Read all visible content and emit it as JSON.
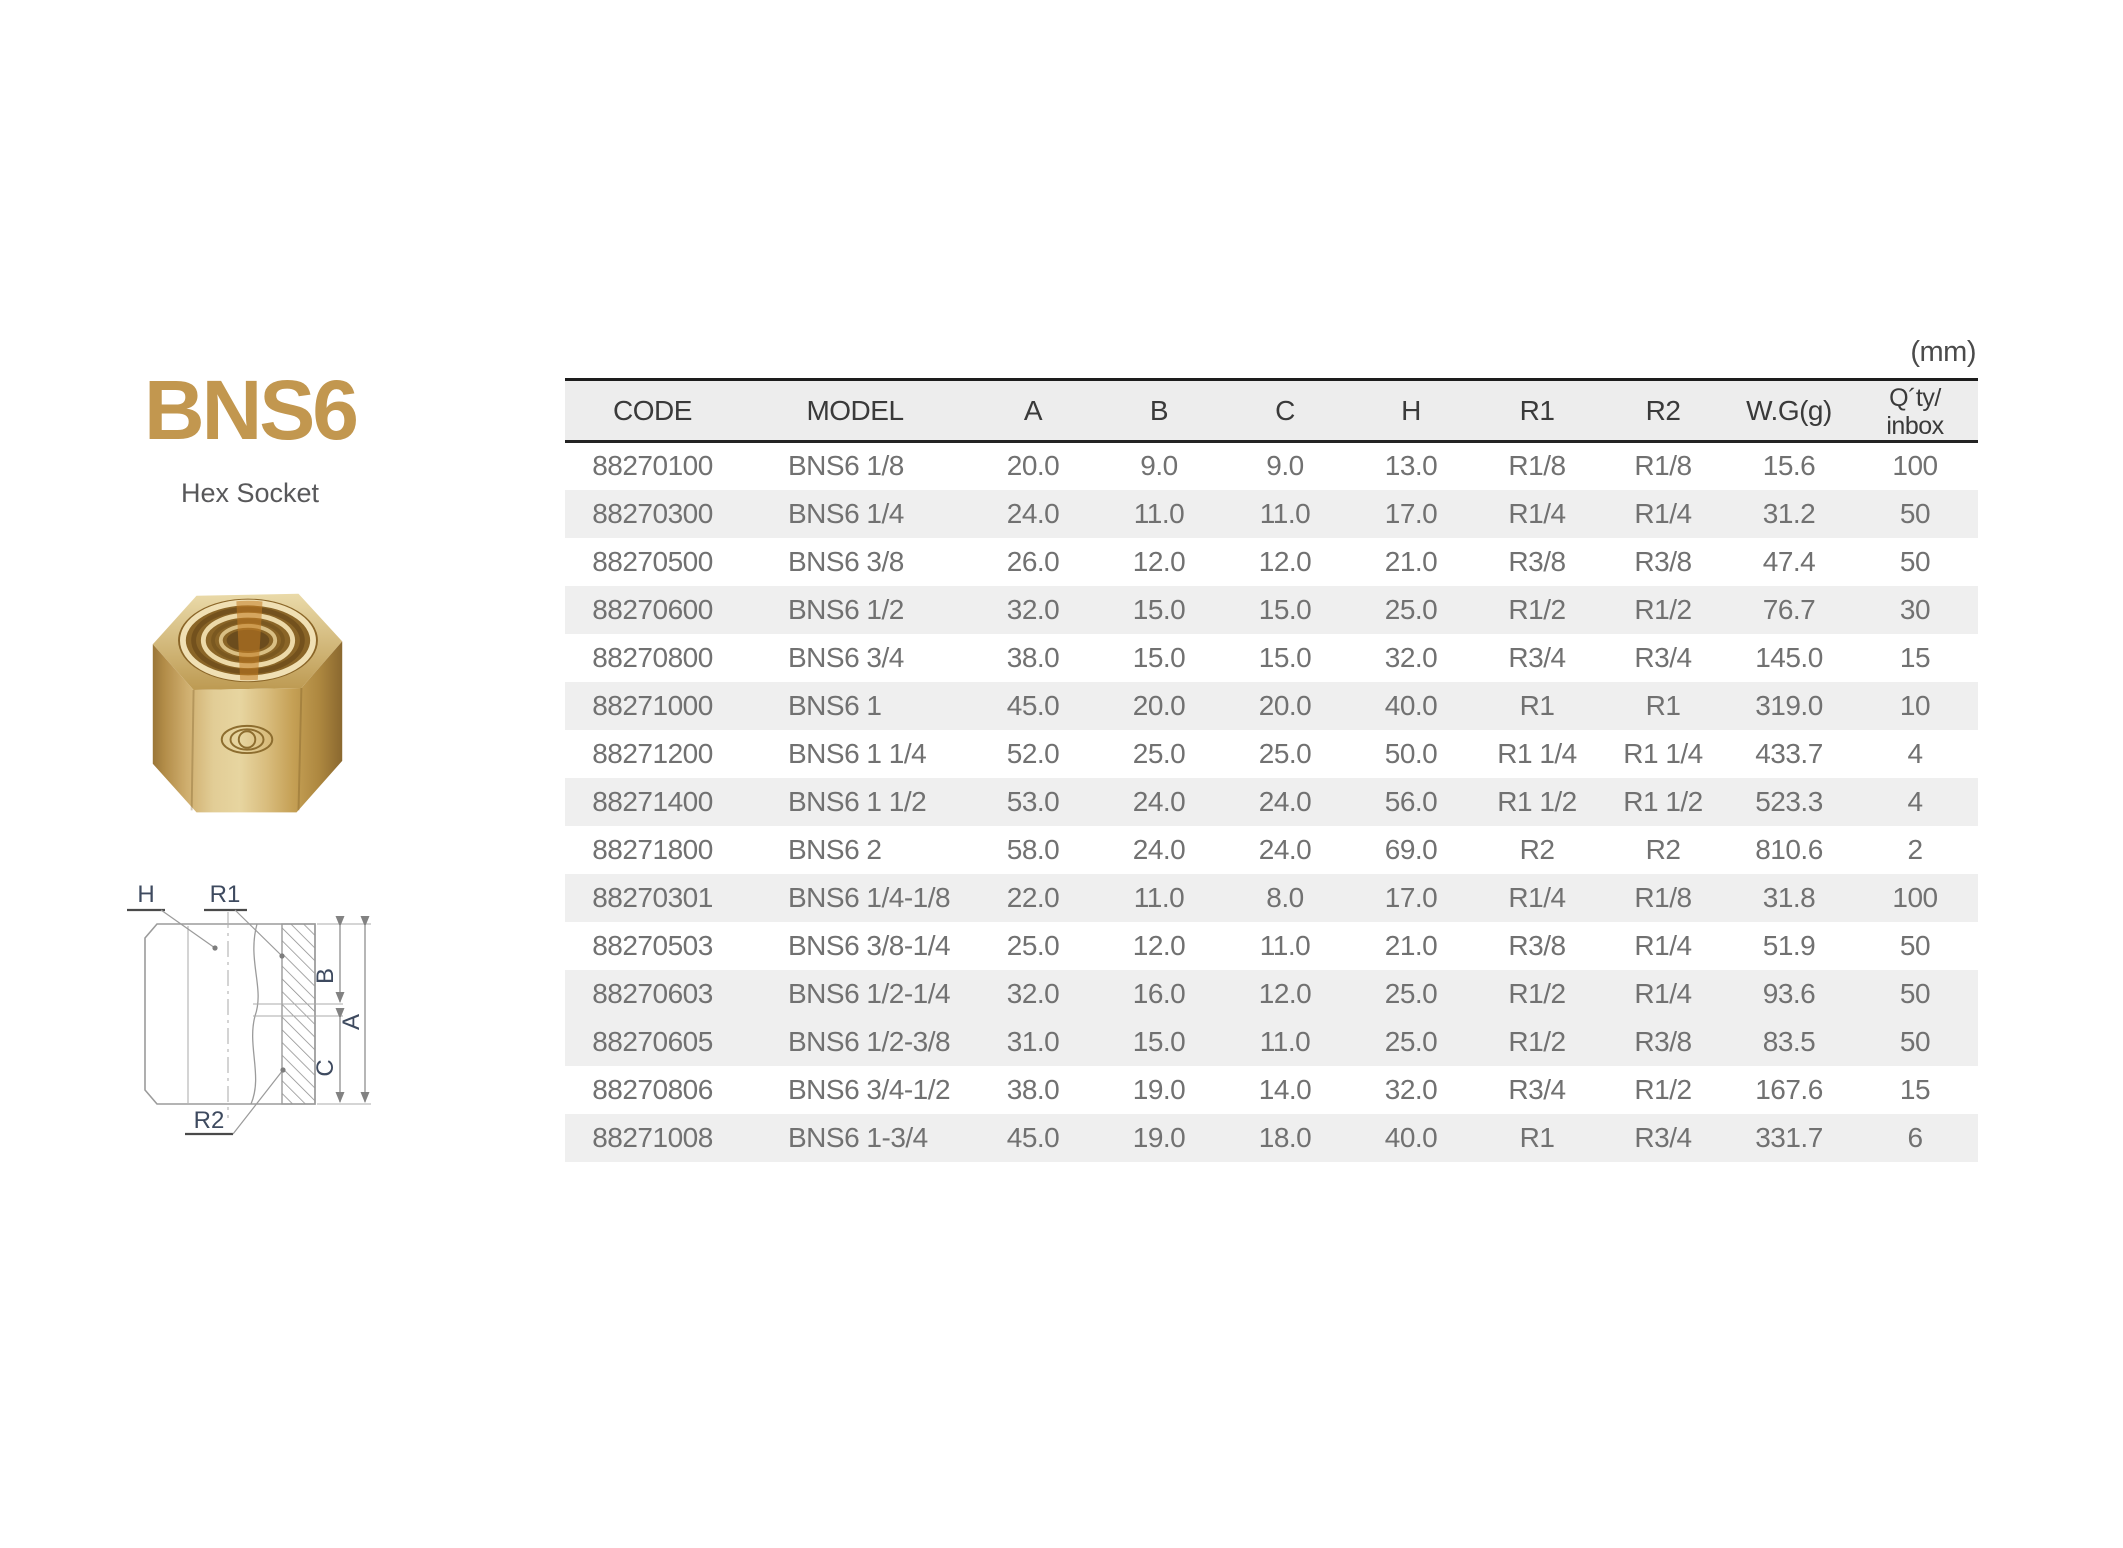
{
  "page": {
    "background": "#ffffff"
  },
  "product": {
    "series": "BNS6",
    "type_name": "Hex Socket",
    "accent_color": "#c2974f",
    "photo_alt": "brass hex socket fitting"
  },
  "diagram": {
    "labels": {
      "h": "H",
      "r1": "R1",
      "r2": "R2",
      "a": "A",
      "b": "B",
      "c": "C"
    }
  },
  "table": {
    "unit_label": "(mm)",
    "columns": {
      "code": "CODE",
      "model": "MODEL",
      "a": "A",
      "b": "B",
      "c": "C",
      "h": "H",
      "r1": "R1",
      "r2": "R2",
      "wg": "W.G(g)",
      "qty_line1": "Q´ty/",
      "qty_line2": "inbox"
    },
    "column_keys": [
      "code",
      "model",
      "a",
      "b",
      "c",
      "h",
      "r1",
      "r2",
      "wg",
      "qty"
    ],
    "rows": [
      {
        "code": "88270100",
        "model": "BNS6 1/8",
        "a": "20.0",
        "b": "9.0",
        "c": "9.0",
        "h": "13.0",
        "r1": "R1/8",
        "r2": "R1/8",
        "wg": "15.6",
        "qty": "100",
        "shaded": false
      },
      {
        "code": "88270300",
        "model": "BNS6 1/4",
        "a": "24.0",
        "b": "11.0",
        "c": "11.0",
        "h": "17.0",
        "r1": "R1/4",
        "r2": "R1/4",
        "wg": "31.2",
        "qty": "50",
        "shaded": true
      },
      {
        "code": "88270500",
        "model": "BNS6 3/8",
        "a": "26.0",
        "b": "12.0",
        "c": "12.0",
        "h": "21.0",
        "r1": "R3/8",
        "r2": "R3/8",
        "wg": "47.4",
        "qty": "50",
        "shaded": false
      },
      {
        "code": "88270600",
        "model": "BNS6 1/2",
        "a": "32.0",
        "b": "15.0",
        "c": "15.0",
        "h": "25.0",
        "r1": "R1/2",
        "r2": "R1/2",
        "wg": "76.7",
        "qty": "30",
        "shaded": true
      },
      {
        "code": "88270800",
        "model": "BNS6 3/4",
        "a": "38.0",
        "b": "15.0",
        "c": "15.0",
        "h": "32.0",
        "r1": "R3/4",
        "r2": "R3/4",
        "wg": "145.0",
        "qty": "15",
        "shaded": false
      },
      {
        "code": "88271000",
        "model": "BNS6 1",
        "a": "45.0",
        "b": "20.0",
        "c": "20.0",
        "h": "40.0",
        "r1": "R1",
        "r2": "R1",
        "wg": "319.0",
        "qty": "10",
        "shaded": true
      },
      {
        "code": "88271200",
        "model": "BNS6 1 1/4",
        "a": "52.0",
        "b": "25.0",
        "c": "25.0",
        "h": "50.0",
        "r1": "R1 1/4",
        "r2": "R1 1/4",
        "wg": "433.7",
        "qty": "4",
        "shaded": false
      },
      {
        "code": "88271400",
        "model": "BNS6 1 1/2",
        "a": "53.0",
        "b": "24.0",
        "c": "24.0",
        "h": "56.0",
        "r1": "R1 1/2",
        "r2": "R1 1/2",
        "wg": "523.3",
        "qty": "4",
        "shaded": true
      },
      {
        "code": "88271800",
        "model": "BNS6 2",
        "a": "58.0",
        "b": "24.0",
        "c": "24.0",
        "h": "69.0",
        "r1": "R2",
        "r2": "R2",
        "wg": "810.6",
        "qty": "2",
        "shaded": false
      },
      {
        "code": "88270301",
        "model": "BNS6 1/4-1/8",
        "a": "22.0",
        "b": "11.0",
        "c": "8.0",
        "h": "17.0",
        "r1": "R1/4",
        "r2": "R1/8",
        "wg": "31.8",
        "qty": "100",
        "shaded": true
      },
      {
        "code": "88270503",
        "model": "BNS6 3/8-1/4",
        "a": "25.0",
        "b": "12.0",
        "c": "11.0",
        "h": "21.0",
        "r1": "R3/8",
        "r2": "R1/4",
        "wg": "51.9",
        "qty": "50",
        "shaded": false
      },
      {
        "code": "88270603",
        "model": "BNS6 1/2-1/4",
        "a": "32.0",
        "b": "16.0",
        "c": "12.0",
        "h": "25.0",
        "r1": "R1/2",
        "r2": "R1/4",
        "wg": "93.6",
        "qty": "50",
        "shaded": true
      },
      {
        "code": "88270605",
        "model": "BNS6 1/2-3/8",
        "a": "31.0",
        "b": "15.0",
        "c": "11.0",
        "h": "25.0",
        "r1": "R1/2",
        "r2": "R3/8",
        "wg": "83.5",
        "qty": "50",
        "shaded": true
      },
      {
        "code": "88270806",
        "model": "BNS6 3/4-1/2",
        "a": "38.0",
        "b": "19.0",
        "c": "14.0",
        "h": "32.0",
        "r1": "R3/4",
        "r2": "R1/2",
        "wg": "167.6",
        "qty": "15",
        "shaded": false
      },
      {
        "code": "88271008",
        "model": "BNS6 1-3/4",
        "a": "45.0",
        "b": "19.0",
        "c": "18.0",
        "h": "40.0",
        "r1": "R1",
        "r2": "R3/4",
        "wg": "331.7",
        "qty": "6",
        "shaded": true
      }
    ]
  }
}
